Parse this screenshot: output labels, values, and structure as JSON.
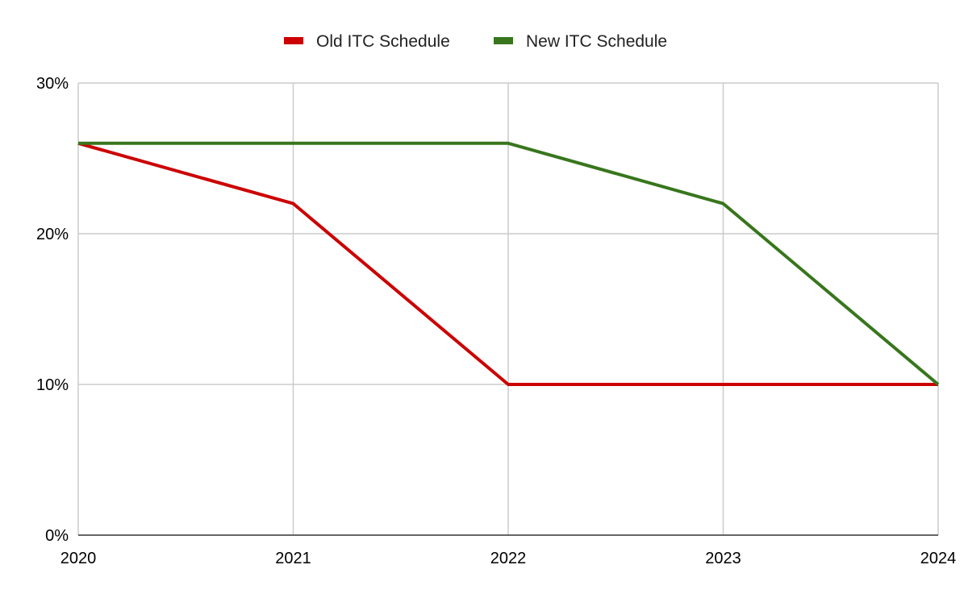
{
  "chart_data": {
    "type": "line",
    "title": "",
    "xlabel": "",
    "ylabel": "",
    "x": [
      2020,
      2021,
      2022,
      2023,
      2024
    ],
    "x_tick_labels": [
      "2020",
      "2021",
      "2022",
      "2023",
      "2024"
    ],
    "y_tick_labels": [
      "0%",
      "10%",
      "20%",
      "30%"
    ],
    "y_ticks": [
      0,
      10,
      20,
      30
    ],
    "ylim": [
      0,
      30
    ],
    "y_unit": "%",
    "grid": true,
    "legend_position": "top-center",
    "series": [
      {
        "name": "Old ITC Schedule",
        "color": "#cc0000",
        "values": [
          26,
          22,
          10,
          10,
          10
        ]
      },
      {
        "name": "New ITC Schedule",
        "color": "#38761d",
        "values": [
          26,
          26,
          26,
          22,
          10
        ]
      }
    ]
  }
}
